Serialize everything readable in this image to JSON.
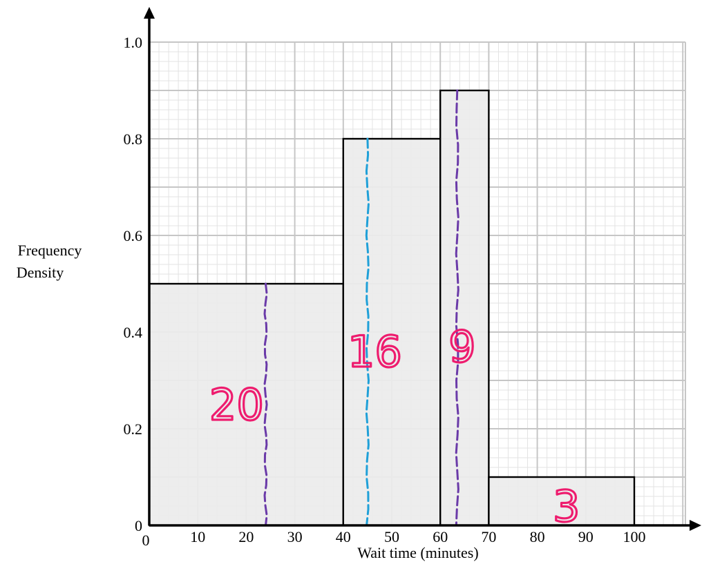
{
  "chart_data": {
    "type": "histogram",
    "title": "",
    "xlabel": "Wait time (minutes)",
    "ylabel": [
      "Frequency",
      "Density"
    ],
    "xlim": [
      0,
      110
    ],
    "ylim": [
      0,
      1.0
    ],
    "x_ticks": [
      0,
      10,
      20,
      30,
      40,
      50,
      60,
      70,
      80,
      90,
      100
    ],
    "x_tick_labels": [
      "0",
      "10",
      "20",
      "30",
      "40",
      "50",
      "60",
      "70",
      "80",
      "90",
      "100"
    ],
    "y_ticks": [
      0,
      0.2,
      0.4,
      0.6,
      0.8,
      1.0
    ],
    "y_tick_labels": [
      "0",
      "0.2",
      "0.4",
      "0.6",
      "0.8",
      "1.0"
    ],
    "grid": true,
    "bars": [
      {
        "x_start": 0,
        "x_end": 40,
        "frequency_density": 0.5
      },
      {
        "x_start": 40,
        "x_end": 60,
        "frequency_density": 0.8
      },
      {
        "x_start": 60,
        "x_end": 70,
        "frequency_density": 0.9
      },
      {
        "x_start": 70,
        "x_end": 100,
        "frequency_density": 0.1
      }
    ],
    "annotations": [
      {
        "text": "20",
        "x": 18,
        "y": 0.25
      },
      {
        "text": "16",
        "x": 46.5,
        "y": 0.36
      },
      {
        "text": "9",
        "x": 64.5,
        "y": 0.37
      },
      {
        "text": "3",
        "x": 86,
        "y": 0.04
      }
    ],
    "dashed_lines": [
      {
        "x": 24,
        "y_top": 0.5,
        "color": "#6a3aa8"
      },
      {
        "x": 45,
        "y_top": 0.8,
        "color": "#1fa0d8"
      },
      {
        "x": 63.5,
        "y_top": 0.9,
        "color": "#6a3aa8"
      }
    ],
    "colors": {
      "bar_fill": "#ececec",
      "bar_stroke": "#000000",
      "grid_major": "#c6c6c6",
      "grid_minor": "#e3e3e3",
      "annotation": "#ee1c6e"
    }
  }
}
